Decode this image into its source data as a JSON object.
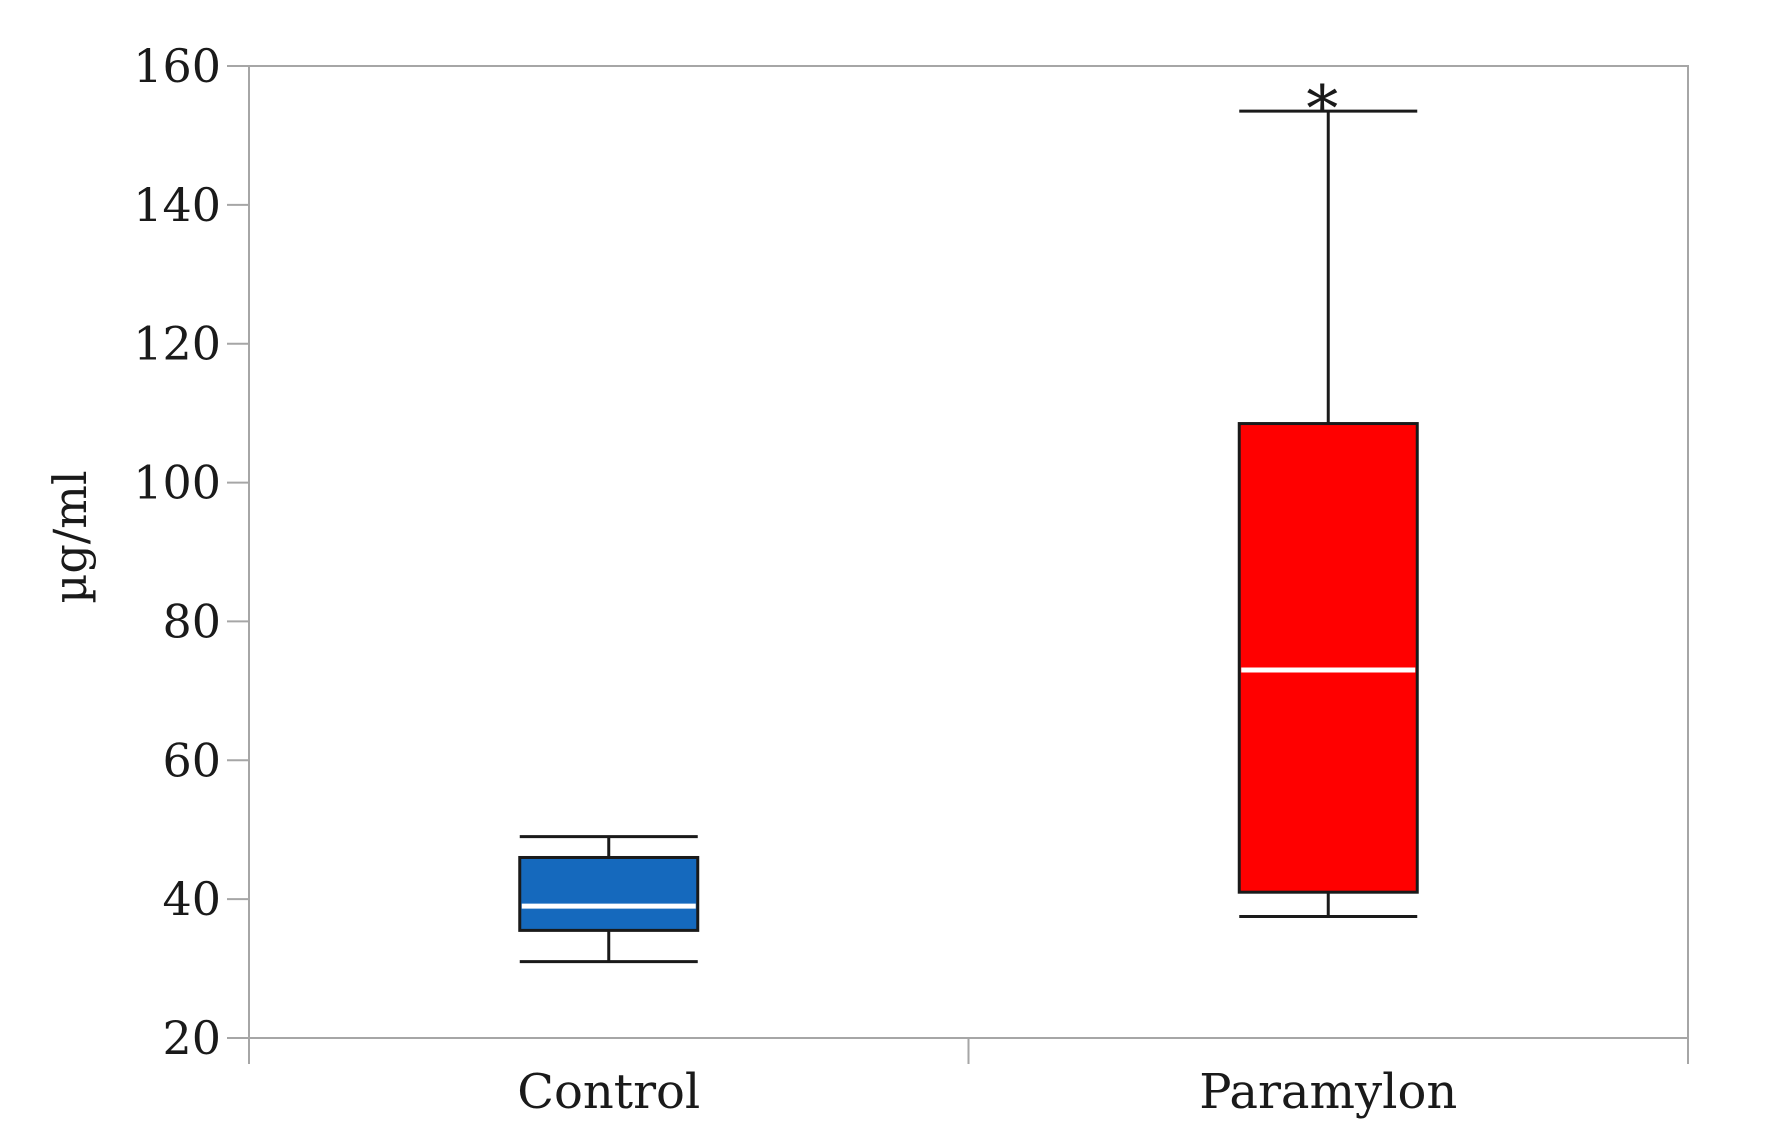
{
  "chart_data": {
    "type": "box",
    "title": "",
    "xlabel": "",
    "ylabel": "µg/ml",
    "ylim": [
      20,
      160
    ],
    "yticks": [
      20,
      40,
      60,
      80,
      100,
      120,
      140,
      160
    ],
    "grid": false,
    "categories": [
      "Control",
      "Paramylon"
    ],
    "boxes": [
      {
        "category": "Control",
        "min": 31,
        "q1": 35.5,
        "median": 39,
        "q3": 46,
        "max": 49,
        "color": "#1569bd",
        "annotation": ""
      },
      {
        "category": "Paramylon",
        "min": 37.5,
        "q1": 41,
        "median": 73,
        "q3": 108.5,
        "max": 153.5,
        "color": "#ff0000",
        "annotation": "*"
      }
    ],
    "colors": {
      "axis": "#a6a6a6",
      "median": "#ffffff",
      "whisker": "#1a1a1a",
      "text": "#1a1a1a"
    }
  }
}
